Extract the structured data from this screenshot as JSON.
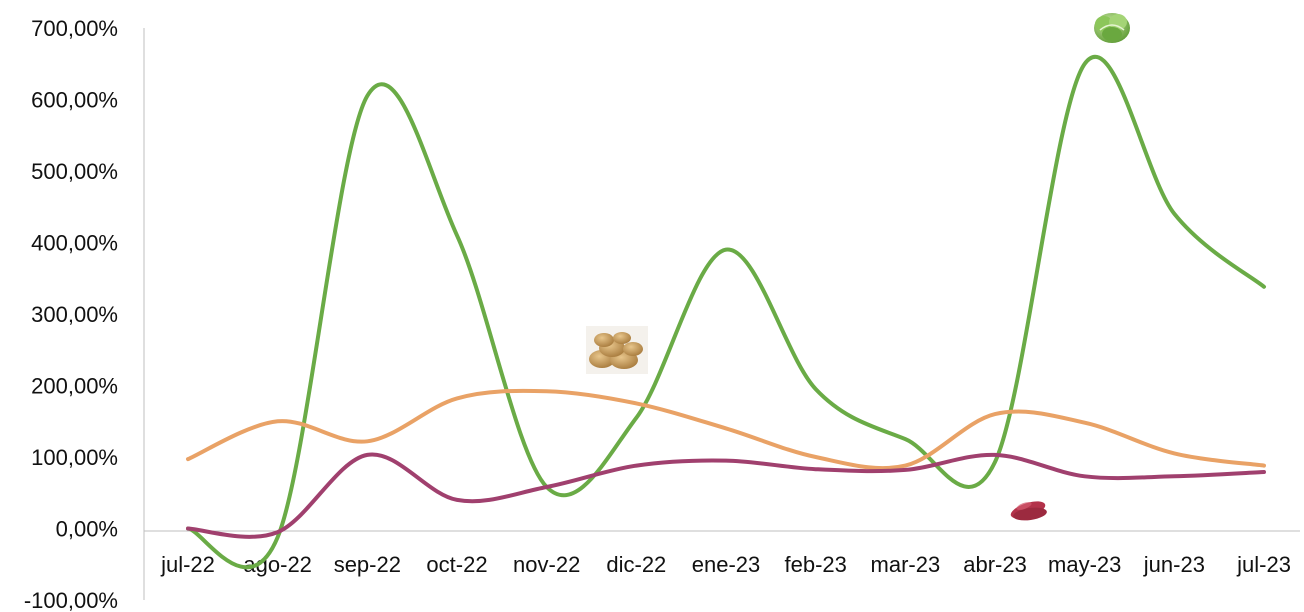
{
  "chart_data": {
    "type": "line",
    "title": "",
    "xlabel": "",
    "ylabel": "",
    "categories": [
      "jul-22",
      "ago-22",
      "sep-22",
      "oct-22",
      "nov-22",
      "dic-22",
      "ene-23",
      "feb-23",
      "mar-23",
      "abr-23",
      "may-23",
      "jun-23",
      "jul-23"
    ],
    "y_tick_labels": [
      "700,00%",
      "600,00%",
      "500,00%",
      "400,00%",
      "300,00%",
      "200,00%",
      "100,00%",
      "0,00%",
      "-100,00%"
    ],
    "ylim": [
      -100,
      700
    ],
    "y_ticks": [
      700,
      600,
      500,
      400,
      300,
      200,
      100,
      0,
      -100
    ],
    "grid": false,
    "legend": "none",
    "series": [
      {
        "color": "#6aab46",
        "icon": "lettuce-icon",
        "values": [
          0,
          -12,
          605,
          410,
          58,
          155,
          390,
          195,
          125,
          93,
          650,
          440,
          338
        ]
      },
      {
        "color": "#e9a266",
        "icon": "potato-icon",
        "values": [
          97,
          150,
          122,
          182,
          192,
          175,
          140,
          100,
          88,
          160,
          148,
          105,
          88
        ]
      },
      {
        "color": "#a0406e",
        "icon": "sweet-potato-icon",
        "values": [
          0,
          -5,
          103,
          40,
          58,
          88,
          95,
          83,
          82,
          103,
          73,
          73,
          79
        ]
      }
    ]
  }
}
